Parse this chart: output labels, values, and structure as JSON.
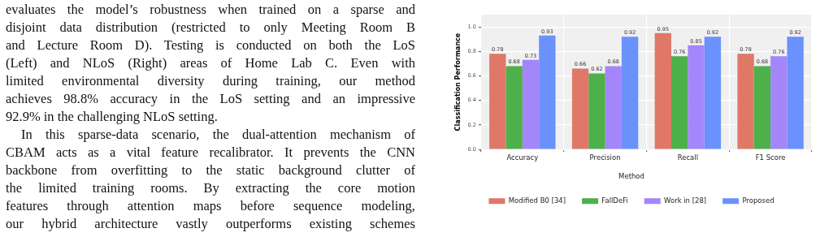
{
  "chart_data": {
    "type": "bar",
    "ylabel": "Classification Performance",
    "legend_title": "Method",
    "categories": [
      "Accuracy",
      "Precision",
      "Recall",
      "F1 Score"
    ],
    "series": [
      {
        "name": "Modified B0 [34]",
        "color": "#e07868",
        "values": [
          0.78,
          0.66,
          0.95,
          0.78
        ]
      },
      {
        "name": "FallDeFi",
        "color": "#4db04a",
        "values": [
          0.68,
          0.62,
          0.76,
          0.68
        ]
      },
      {
        "name": "Work in [28]",
        "color": "#a585fa",
        "values": [
          0.73,
          0.68,
          0.85,
          0.76
        ]
      },
      {
        "name": "Proposed",
        "color": "#6b91fd",
        "values": [
          0.93,
          0.92,
          0.92,
          0.92
        ]
      }
    ],
    "ylim": [
      0,
      1.1
    ],
    "yticks": [
      {
        "value": 0,
        "label": "0.0"
      },
      {
        "value": 0.2,
        "label": "0.2"
      },
      {
        "value": 0.4,
        "label": "0.4"
      },
      {
        "value": 0.6,
        "label": "0.6"
      },
      {
        "value": 0.8,
        "label": "0.8"
      },
      {
        "value": 1,
        "label": "1.0"
      }
    ],
    "grid": true,
    "legend": "bottom",
    "data_labels": true,
    "annotations": [
      "evaluates the model’s robustness when trained on a sparse and",
      "disjoint data distribution (restricted to only Meeting Room B",
      "and Lecture Room D). Testing is conducted on both the LoS",
      "(Left) and NLoS (Right) areas of Home Lab C. Even with",
      "limited environmental diversity during training, our method",
      "achieves 98.8% accuracy in the LoS setting and an impressive",
      "92.9% in the challenging NLoS setting.",
      "In this sparse-data scenario, the dual-attention mechanism of",
      "CBAM acts as a vital feature recalibrator. It prevents the CNN",
      "backbone from overfitting to the static background clutter of",
      "the limited training rooms. By extracting the core motion",
      "features through attention maps before sequence modeling,",
      "our hybrid architecture vastly outperforms existing schemes"
    ]
  }
}
